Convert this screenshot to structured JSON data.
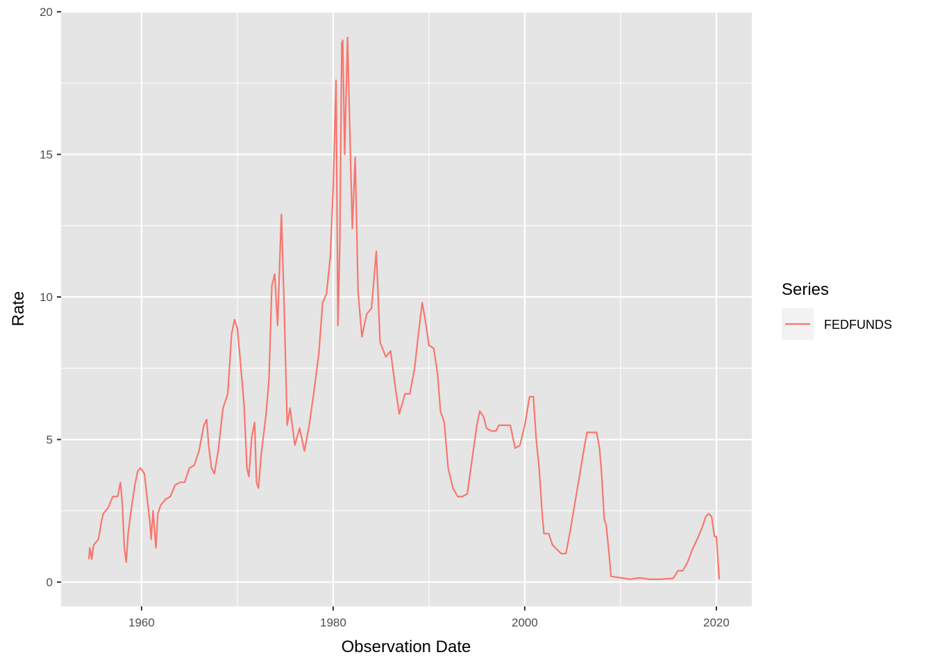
{
  "chart_data": {
    "type": "line",
    "xlabel": "Observation Date",
    "ylabel": "Rate",
    "xlim": [
      1951.6,
      2023.7
    ],
    "ylim": [
      -0.85,
      20.0
    ],
    "x_ticks": [
      1960,
      1980,
      2000,
      2020
    ],
    "y_ticks": [
      0,
      5,
      10,
      15,
      20
    ],
    "grid": true,
    "legend": {
      "title": "Series",
      "position": "right"
    },
    "colors": {
      "panel": "#e5e5e5",
      "grid": "#ffffff",
      "line": "#f8766d",
      "legend_key": "#f2f2f2"
    },
    "series": [
      {
        "name": "FEDFUNDS",
        "color": "#f8766d",
        "points": [
          [
            1954.5,
            0.8
          ],
          [
            1954.6,
            1.2
          ],
          [
            1954.8,
            0.8
          ],
          [
            1955.0,
            1.3
          ],
          [
            1955.5,
            1.5
          ],
          [
            1955.8,
            2.1
          ],
          [
            1956.0,
            2.4
          ],
          [
            1956.5,
            2.6
          ],
          [
            1957.0,
            3.0
          ],
          [
            1957.5,
            3.0
          ],
          [
            1957.8,
            3.5
          ],
          [
            1958.0,
            2.7
          ],
          [
            1958.2,
            1.2
          ],
          [
            1958.4,
            0.7
          ],
          [
            1958.6,
            1.7
          ],
          [
            1958.9,
            2.5
          ],
          [
            1959.3,
            3.4
          ],
          [
            1959.6,
            3.9
          ],
          [
            1959.9,
            4.0
          ],
          [
            1960.3,
            3.8
          ],
          [
            1960.6,
            2.9
          ],
          [
            1960.9,
            2.0
          ],
          [
            1961.0,
            1.5
          ],
          [
            1961.2,
            2.5
          ],
          [
            1961.5,
            1.2
          ],
          [
            1961.7,
            2.4
          ],
          [
            1962.0,
            2.7
          ],
          [
            1962.5,
            2.9
          ],
          [
            1963.0,
            3.0
          ],
          [
            1963.5,
            3.4
          ],
          [
            1964.0,
            3.5
          ],
          [
            1964.5,
            3.5
          ],
          [
            1965.0,
            4.0
          ],
          [
            1965.5,
            4.1
          ],
          [
            1966.0,
            4.6
          ],
          [
            1966.5,
            5.5
          ],
          [
            1966.8,
            5.7
          ],
          [
            1967.0,
            4.8
          ],
          [
            1967.3,
            4.0
          ],
          [
            1967.6,
            3.8
          ],
          [
            1968.0,
            4.6
          ],
          [
            1968.5,
            6.1
          ],
          [
            1969.0,
            6.6
          ],
          [
            1969.4,
            8.7
          ],
          [
            1969.7,
            9.2
          ],
          [
            1970.0,
            8.9
          ],
          [
            1970.3,
            7.8
          ],
          [
            1970.7,
            6.2
          ],
          [
            1971.0,
            4.0
          ],
          [
            1971.2,
            3.7
          ],
          [
            1971.5,
            5.1
          ],
          [
            1971.8,
            5.6
          ],
          [
            1972.0,
            3.5
          ],
          [
            1972.2,
            3.3
          ],
          [
            1972.5,
            4.5
          ],
          [
            1973.0,
            5.9
          ],
          [
            1973.3,
            7.1
          ],
          [
            1973.6,
            10.4
          ],
          [
            1973.9,
            10.8
          ],
          [
            1974.2,
            9.0
          ],
          [
            1974.5,
            12.0
          ],
          [
            1974.6,
            12.9
          ],
          [
            1974.9,
            9.5
          ],
          [
            1975.2,
            5.5
          ],
          [
            1975.5,
            6.1
          ],
          [
            1976.0,
            4.8
          ],
          [
            1976.5,
            5.4
          ],
          [
            1977.0,
            4.6
          ],
          [
            1977.5,
            5.5
          ],
          [
            1978.0,
            6.7
          ],
          [
            1978.5,
            8.0
          ],
          [
            1978.9,
            9.8
          ],
          [
            1979.3,
            10.1
          ],
          [
            1979.7,
            11.4
          ],
          [
            1980.0,
            13.8
          ],
          [
            1980.3,
            17.6
          ],
          [
            1980.5,
            9.0
          ],
          [
            1980.7,
            12.0
          ],
          [
            1980.9,
            18.9
          ],
          [
            1981.0,
            19.0
          ],
          [
            1981.2,
            15.0
          ],
          [
            1981.5,
            19.1
          ],
          [
            1981.8,
            15.0
          ],
          [
            1982.0,
            12.4
          ],
          [
            1982.3,
            14.9
          ],
          [
            1982.6,
            10.2
          ],
          [
            1983.0,
            8.6
          ],
          [
            1983.5,
            9.4
          ],
          [
            1984.0,
            9.6
          ],
          [
            1984.5,
            11.6
          ],
          [
            1984.9,
            8.4
          ],
          [
            1985.5,
            7.9
          ],
          [
            1986.0,
            8.1
          ],
          [
            1986.5,
            6.8
          ],
          [
            1986.9,
            5.9
          ],
          [
            1987.5,
            6.6
          ],
          [
            1988.0,
            6.6
          ],
          [
            1988.5,
            7.5
          ],
          [
            1989.0,
            9.0
          ],
          [
            1989.3,
            9.8
          ],
          [
            1989.7,
            9.0
          ],
          [
            1990.0,
            8.3
          ],
          [
            1990.5,
            8.2
          ],
          [
            1990.9,
            7.3
          ],
          [
            1991.2,
            6.0
          ],
          [
            1991.6,
            5.6
          ],
          [
            1992.0,
            4.0
          ],
          [
            1992.5,
            3.3
          ],
          [
            1993.0,
            3.0
          ],
          [
            1993.5,
            3.0
          ],
          [
            1994.0,
            3.1
          ],
          [
            1994.5,
            4.3
          ],
          [
            1995.0,
            5.5
          ],
          [
            1995.3,
            6.0
          ],
          [
            1995.7,
            5.8
          ],
          [
            1996.0,
            5.4
          ],
          [
            1996.5,
            5.3
          ],
          [
            1997.0,
            5.3
          ],
          [
            1997.3,
            5.5
          ],
          [
            1998.0,
            5.5
          ],
          [
            1998.5,
            5.5
          ],
          [
            1998.8,
            5.0
          ],
          [
            1999.0,
            4.7
          ],
          [
            1999.5,
            4.8
          ],
          [
            2000.0,
            5.5
          ],
          [
            2000.5,
            6.5
          ],
          [
            2000.9,
            6.5
          ],
          [
            2001.2,
            5.0
          ],
          [
            2001.5,
            4.0
          ],
          [
            2001.8,
            2.5
          ],
          [
            2002.0,
            1.7
          ],
          [
            2002.5,
            1.7
          ],
          [
            2002.9,
            1.3
          ],
          [
            2003.5,
            1.1
          ],
          [
            2003.8,
            1.0
          ],
          [
            2004.3,
            1.0
          ],
          [
            2004.8,
            1.9
          ],
          [
            2005.3,
            2.9
          ],
          [
            2005.8,
            3.9
          ],
          [
            2006.3,
            4.9
          ],
          [
            2006.5,
            5.25
          ],
          [
            2007.0,
            5.25
          ],
          [
            2007.5,
            5.25
          ],
          [
            2007.8,
            4.7
          ],
          [
            2008.0,
            3.9
          ],
          [
            2008.3,
            2.2
          ],
          [
            2008.5,
            2.0
          ],
          [
            2008.8,
            1.0
          ],
          [
            2009.0,
            0.2
          ],
          [
            2010.0,
            0.15
          ],
          [
            2011.0,
            0.1
          ],
          [
            2012.0,
            0.15
          ],
          [
            2013.0,
            0.1
          ],
          [
            2014.0,
            0.1
          ],
          [
            2015.0,
            0.12
          ],
          [
            2015.5,
            0.13
          ],
          [
            2016.0,
            0.4
          ],
          [
            2016.5,
            0.4
          ],
          [
            2017.0,
            0.7
          ],
          [
            2017.5,
            1.15
          ],
          [
            2018.0,
            1.5
          ],
          [
            2018.5,
            1.9
          ],
          [
            2018.9,
            2.3
          ],
          [
            2019.2,
            2.4
          ],
          [
            2019.5,
            2.3
          ],
          [
            2019.8,
            1.6
          ],
          [
            2020.0,
            1.6
          ],
          [
            2020.3,
            0.1
          ]
        ]
      }
    ]
  }
}
